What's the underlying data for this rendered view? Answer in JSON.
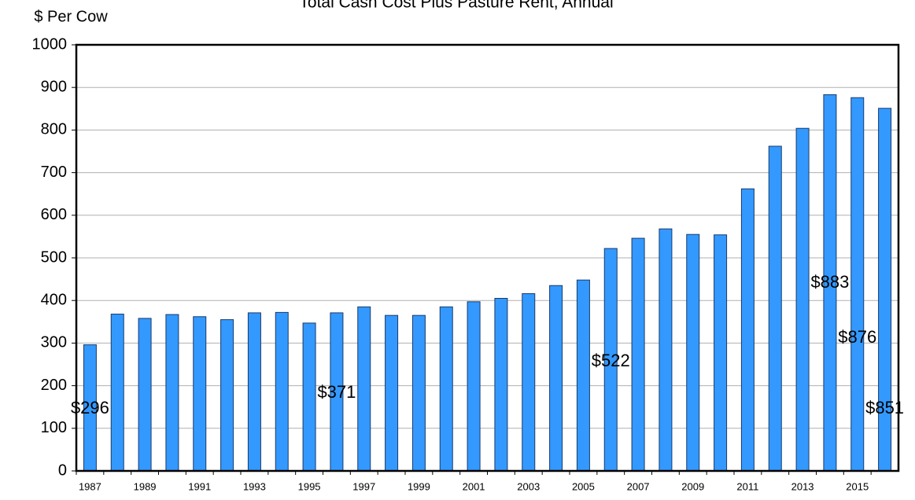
{
  "chart_data": {
    "type": "bar",
    "title": "Total Cash Cost Plus Pasture Rent, Annual",
    "y_axis_label": "$ Per Cow",
    "categories": [
      "1987",
      null,
      "1989",
      null,
      "1991",
      null,
      "1993",
      null,
      "1995",
      null,
      "1997",
      null,
      "1999",
      null,
      "2001",
      null,
      "2003",
      null,
      "2005",
      null,
      "2007",
      null,
      "2009",
      null,
      "2011",
      null,
      "2013",
      null,
      "2015",
      null
    ],
    "values": [
      296,
      368,
      358,
      367,
      362,
      355,
      371,
      372,
      347,
      371,
      385,
      365,
      365,
      385,
      397,
      405,
      416,
      435,
      448,
      522,
      546,
      568,
      555,
      554,
      662,
      762,
      804,
      883,
      876,
      851
    ],
    "value_labels": [
      "$296",
      null,
      null,
      null,
      null,
      null,
      null,
      null,
      null,
      "$371",
      null,
      null,
      null,
      null,
      null,
      null,
      null,
      null,
      null,
      "$522",
      null,
      null,
      null,
      null,
      null,
      null,
      null,
      "$883",
      "$876",
      "$851"
    ],
    "color": "#3399ff",
    "ylim": [
      0,
      1000
    ],
    "yticks": [
      0,
      100,
      200,
      300,
      400,
      500,
      600,
      700,
      800,
      900,
      1000
    ],
    "grid": true
  }
}
